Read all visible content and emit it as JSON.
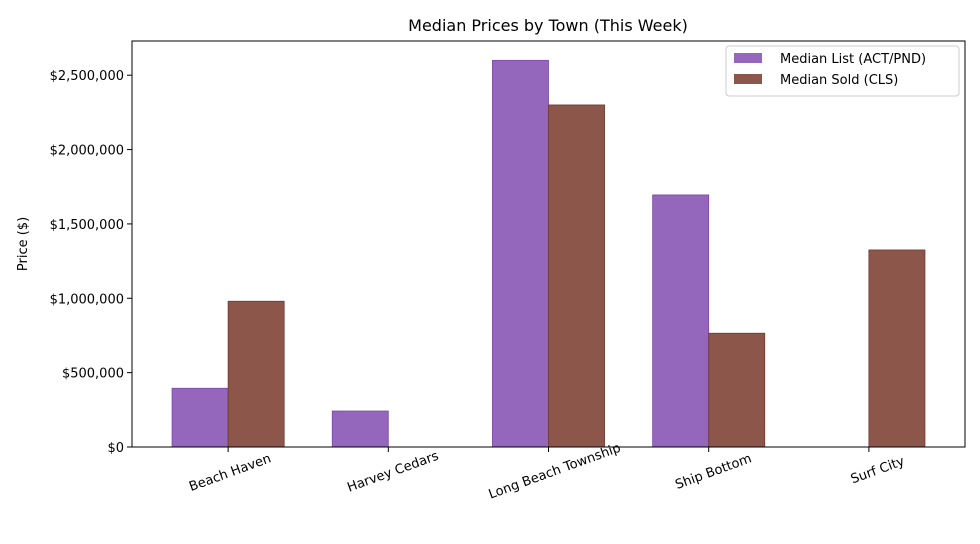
{
  "chart_data": {
    "type": "bar",
    "title": "Median Prices by Town (This Week)",
    "xlabel": "",
    "ylabel": "Price ($)",
    "categories": [
      "Beach Haven",
      "Harvey Cedars",
      "Long Beach Township",
      "Ship Bottom",
      "Surf City"
    ],
    "series": [
      {
        "name": "Median List (ACT/PND)",
        "color": "#9467bd",
        "values": [
          395000,
          242000,
          2600000,
          1695000,
          null
        ]
      },
      {
        "name": "Median Sold (CLS)",
        "color": "#8c564b",
        "values": [
          980000,
          null,
          2300000,
          765000,
          1325000
        ]
      }
    ],
    "yticks": [
      0,
      500000,
      1000000,
      1500000,
      2000000,
      2500000
    ],
    "ytick_labels": [
      "$0",
      "$500,000",
      "$1,000,000",
      "$1,500,000",
      "$2,000,000",
      "$2,500,000"
    ],
    "ylim": [
      0,
      2730000
    ],
    "grid": false,
    "legend": "top-right",
    "xtick_rotation": 20
  }
}
